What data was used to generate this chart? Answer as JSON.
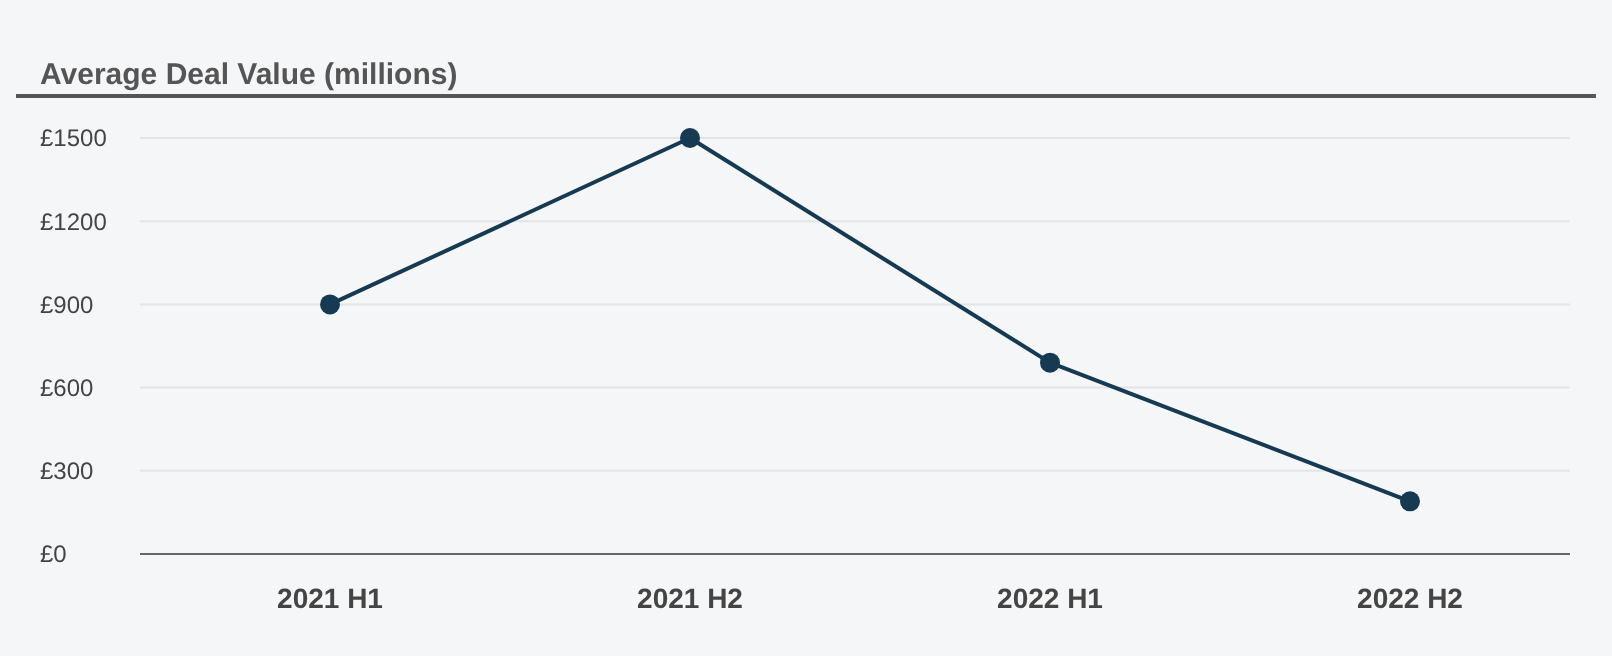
{
  "chart_data": {
    "type": "line",
    "title": "Average Deal Value (millions)",
    "categories": [
      "2021 H1",
      "2021 H2",
      "2022 H1",
      "2022 H2"
    ],
    "series": [
      {
        "color": "#163a52",
        "values": [
          900,
          1500,
          690,
          190
        ]
      }
    ],
    "ylim": [
      0,
      1500
    ],
    "yticks": [
      {
        "value": 0,
        "label": "£0"
      },
      {
        "value": 300,
        "label": "£300"
      },
      {
        "value": 600,
        "label": "£600"
      },
      {
        "value": 900,
        "label": "£900"
      },
      {
        "value": 1200,
        "label": "£1200"
      },
      {
        "value": 1500,
        "label": "£1500"
      }
    ],
    "grid": "y",
    "marker": "circle",
    "line_style": "solid"
  }
}
